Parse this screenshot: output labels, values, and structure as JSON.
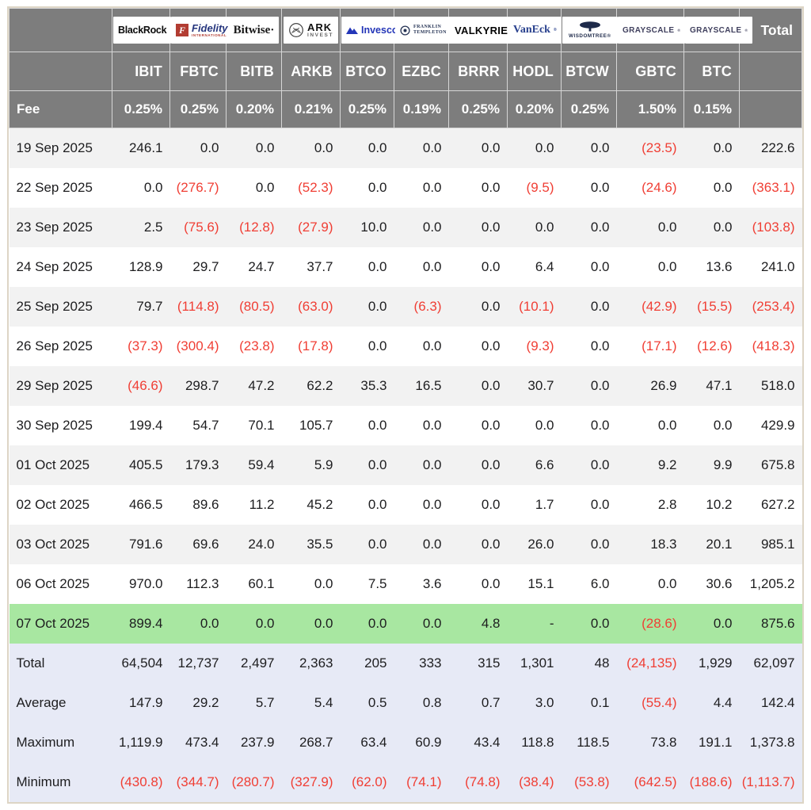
{
  "chart_data": {
    "type": "table",
    "header": {
      "fee_label": "Fee",
      "total_label": "Total"
    },
    "columns": [
      {
        "provider": "BlackRock",
        "ticker": "IBIT",
        "fee": "0.25%"
      },
      {
        "provider": "Fidelity",
        "ticker": "FBTC",
        "fee": "0.25%"
      },
      {
        "provider": "Bitwise",
        "ticker": "BITB",
        "fee": "0.20%"
      },
      {
        "provider": "ARK Invest",
        "ticker": "ARKB",
        "fee": "0.21%"
      },
      {
        "provider": "Invesco",
        "ticker": "BTCO",
        "fee": "0.25%"
      },
      {
        "provider": "Franklin Templeton",
        "ticker": "EZBC",
        "fee": "0.19%"
      },
      {
        "provider": "Valkyrie",
        "ticker": "BRRR",
        "fee": "0.25%"
      },
      {
        "provider": "VanEck",
        "ticker": "HODL",
        "fee": "0.20%"
      },
      {
        "provider": "WisdomTree",
        "ticker": "BTCW",
        "fee": "0.25%"
      },
      {
        "provider": "Grayscale",
        "ticker": "GBTC",
        "fee": "1.50%"
      },
      {
        "provider": "Grayscale",
        "ticker": "BTC",
        "fee": "0.15%"
      }
    ],
    "rows": [
      {
        "date": "19 Sep 2025",
        "values": [
          "246.1",
          "0.0",
          "0.0",
          "0.0",
          "0.0",
          "0.0",
          "0.0",
          "0.0",
          "0.0",
          "(23.5)",
          "0.0"
        ],
        "total": "222.6",
        "highlight": false
      },
      {
        "date": "22 Sep 2025",
        "values": [
          "0.0",
          "(276.7)",
          "0.0",
          "(52.3)",
          "0.0",
          "0.0",
          "0.0",
          "(9.5)",
          "0.0",
          "(24.6)",
          "0.0"
        ],
        "total": "(363.1)",
        "highlight": false
      },
      {
        "date": "23 Sep 2025",
        "values": [
          "2.5",
          "(75.6)",
          "(12.8)",
          "(27.9)",
          "10.0",
          "0.0",
          "0.0",
          "0.0",
          "0.0",
          "0.0",
          "0.0"
        ],
        "total": "(103.8)",
        "highlight": false
      },
      {
        "date": "24 Sep 2025",
        "values": [
          "128.9",
          "29.7",
          "24.7",
          "37.7",
          "0.0",
          "0.0",
          "0.0",
          "6.4",
          "0.0",
          "0.0",
          "13.6"
        ],
        "total": "241.0",
        "highlight": false
      },
      {
        "date": "25 Sep 2025",
        "values": [
          "79.7",
          "(114.8)",
          "(80.5)",
          "(63.0)",
          "0.0",
          "(6.3)",
          "0.0",
          "(10.1)",
          "0.0",
          "(42.9)",
          "(15.5)"
        ],
        "total": "(253.4)",
        "highlight": false
      },
      {
        "date": "26 Sep 2025",
        "values": [
          "(37.3)",
          "(300.4)",
          "(23.8)",
          "(17.8)",
          "0.0",
          "0.0",
          "0.0",
          "(9.3)",
          "0.0",
          "(17.1)",
          "(12.6)"
        ],
        "total": "(418.3)",
        "highlight": false
      },
      {
        "date": "29 Sep 2025",
        "values": [
          "(46.6)",
          "298.7",
          "47.2",
          "62.2",
          "35.3",
          "16.5",
          "0.0",
          "30.7",
          "0.0",
          "26.9",
          "47.1"
        ],
        "total": "518.0",
        "highlight": false
      },
      {
        "date": "30 Sep 2025",
        "values": [
          "199.4",
          "54.7",
          "70.1",
          "105.7",
          "0.0",
          "0.0",
          "0.0",
          "0.0",
          "0.0",
          "0.0",
          "0.0"
        ],
        "total": "429.9",
        "highlight": false
      },
      {
        "date": "01 Oct 2025",
        "values": [
          "405.5",
          "179.3",
          "59.4",
          "5.9",
          "0.0",
          "0.0",
          "0.0",
          "6.6",
          "0.0",
          "9.2",
          "9.9"
        ],
        "total": "675.8",
        "highlight": false
      },
      {
        "date": "02 Oct 2025",
        "values": [
          "466.5",
          "89.6",
          "11.2",
          "45.2",
          "0.0",
          "0.0",
          "0.0",
          "1.7",
          "0.0",
          "2.8",
          "10.2"
        ],
        "total": "627.2",
        "highlight": false
      },
      {
        "date": "03 Oct 2025",
        "values": [
          "791.6",
          "69.6",
          "24.0",
          "35.5",
          "0.0",
          "0.0",
          "0.0",
          "26.0",
          "0.0",
          "18.3",
          "20.1"
        ],
        "total": "985.1",
        "highlight": false
      },
      {
        "date": "06 Oct 2025",
        "values": [
          "970.0",
          "112.3",
          "60.1",
          "0.0",
          "7.5",
          "3.6",
          "0.0",
          "15.1",
          "6.0",
          "0.0",
          "30.6"
        ],
        "total": "1,205.2",
        "highlight": false
      },
      {
        "date": "07 Oct 2025",
        "values": [
          "899.4",
          "0.0",
          "0.0",
          "0.0",
          "0.0",
          "0.0",
          "4.8",
          "-",
          "0.0",
          "(28.6)",
          "0.0"
        ],
        "total": "875.6",
        "highlight": true
      }
    ],
    "summary": [
      {
        "label": "Total",
        "values": [
          "64,504",
          "12,737",
          "2,497",
          "2,363",
          "205",
          "333",
          "315",
          "1,301",
          "48",
          "(24,135)",
          "1,929"
        ],
        "total": "62,097"
      },
      {
        "label": "Average",
        "values": [
          "147.9",
          "29.2",
          "5.7",
          "5.4",
          "0.5",
          "0.8",
          "0.7",
          "3.0",
          "0.1",
          "(55.4)",
          "4.4"
        ],
        "total": "142.4"
      },
      {
        "label": "Maximum",
        "values": [
          "1,119.9",
          "473.4",
          "237.9",
          "268.7",
          "63.4",
          "60.9",
          "43.4",
          "118.8",
          "118.5",
          "73.8",
          "191.1"
        ],
        "total": "1,373.8"
      },
      {
        "label": "Minimum",
        "values": [
          "(430.8)",
          "(344.7)",
          "(280.7)",
          "(327.9)",
          "(62.0)",
          "(74.1)",
          "(74.8)",
          "(38.4)",
          "(53.8)",
          "(642.5)",
          "(188.6)"
        ],
        "total": "(1,113.7)"
      }
    ],
    "colors": {
      "header_bg": "#7d7d7d",
      "row_stripe_bg": "#f2f2f2",
      "highlight_bg": "#a8e7a1",
      "summary_bg": "#e7eaf6",
      "negative_text": "#f03e34"
    }
  }
}
